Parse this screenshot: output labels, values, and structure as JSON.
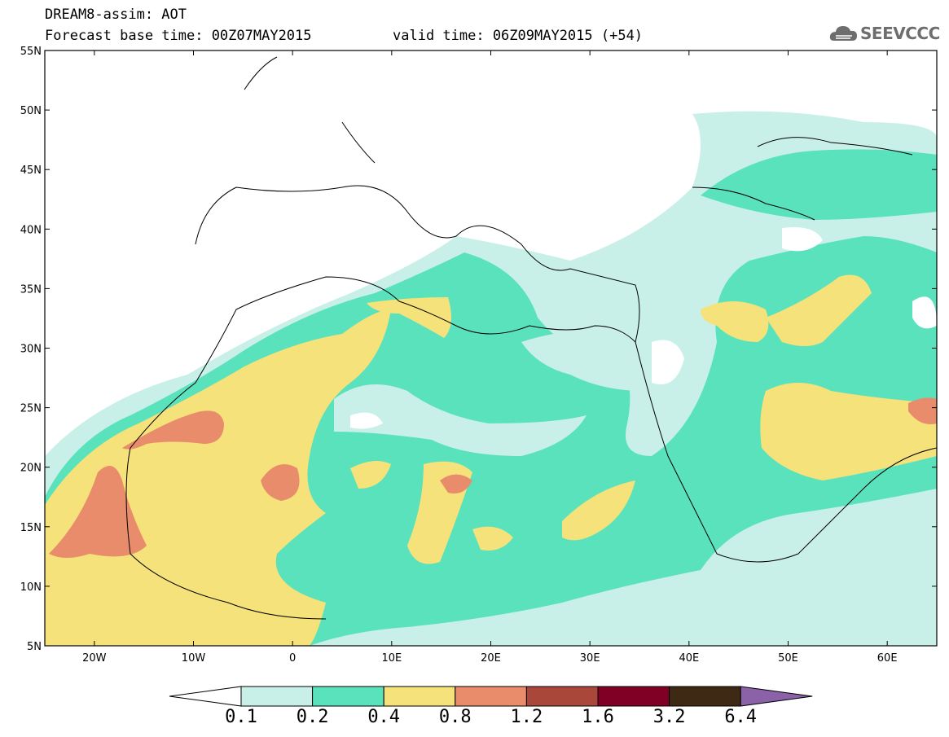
{
  "header": {
    "title": "DREAM8-assim: AOT",
    "base_time": "Forecast base time: 00Z07MAY2015",
    "valid_time": "valid time: 06Z09MAY2015 (+54)"
  },
  "logo": {
    "text": "SEEVCCC",
    "icon": "cloud-icon"
  },
  "map": {
    "lat_labels": [
      "55N",
      "50N",
      "45N",
      "40N",
      "35N",
      "30N",
      "25N",
      "20N",
      "15N",
      "10N",
      "5N"
    ],
    "lon_labels": [
      "20W",
      "10W",
      "0",
      "10E",
      "20E",
      "30E",
      "40E",
      "50E",
      "60E"
    ],
    "lon_range": [
      -25,
      65
    ],
    "lat_range": [
      5,
      55
    ]
  },
  "legend": {
    "thresholds": [
      "0.1",
      "0.2",
      "0.4",
      "0.8",
      "1.2",
      "1.6",
      "3.2",
      "6.4"
    ],
    "colors": [
      "#c8f0e8",
      "#5ae2bd",
      "#f5e27a",
      "#e88c6b",
      "#a9473b",
      "#800025",
      "#3d2914",
      "#8b62a8"
    ]
  }
}
